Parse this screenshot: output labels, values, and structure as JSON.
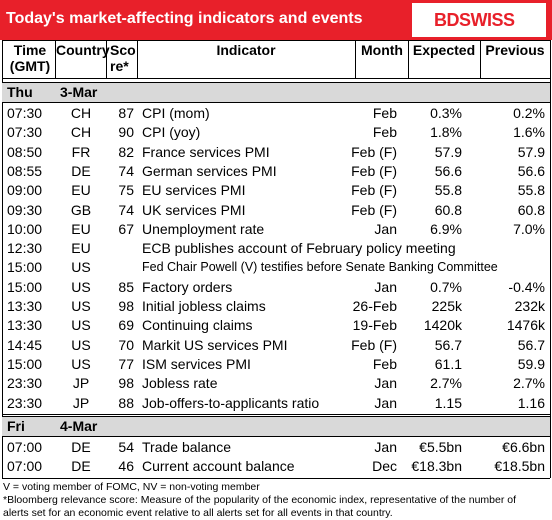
{
  "header": {
    "title": "Today's market-affecting indicators and events",
    "logo": "BDSWISS"
  },
  "columns": [
    "Time (GMT)",
    "Country",
    "Sco re*",
    "Indicator",
    "Month",
    "Expected",
    "Previous"
  ],
  "sections": [
    {
      "day": "Thu",
      "date": "3-Mar",
      "rows": [
        {
          "time": "07:30",
          "country": "CH",
          "score": 87,
          "indicator": "CPI (mom)",
          "month": "Feb",
          "expected": "0.3%",
          "previous": "0.2%"
        },
        {
          "time": "07:30",
          "country": "CH",
          "score": 90,
          "indicator": "CPI (yoy)",
          "month": "Feb",
          "expected": "1.8%",
          "previous": "1.6%"
        },
        {
          "time": "08:50",
          "country": "FR",
          "score": 82,
          "indicator": "France services PMI",
          "month": "Feb (F)",
          "expected": "57.9",
          "previous": "57.9"
        },
        {
          "time": "08:55",
          "country": "DE",
          "score": 74,
          "indicator": "German services PMI",
          "month": "Feb (F)",
          "expected": "56.6",
          "previous": "56.6"
        },
        {
          "time": "09:00",
          "country": "EU",
          "score": 75,
          "indicator": "EU services PMI",
          "month": "Feb (F)",
          "expected": "55.8",
          "previous": "55.8"
        },
        {
          "time": "09:30",
          "country": "GB",
          "score": 74,
          "indicator": "UK services PMI",
          "month": "Feb (F)",
          "expected": "60.8",
          "previous": "60.8"
        },
        {
          "time": "10:00",
          "country": "EU",
          "score": 67,
          "indicator": "Unemployment rate",
          "month": "Jan",
          "expected": "6.9%",
          "previous": "7.0%"
        },
        {
          "time": "12:30",
          "country": "EU",
          "indicator": "ECB publishes account of February policy meeting"
        },
        {
          "time": "15:00",
          "country": "US",
          "indicator": "Fed Chair Powell (V) testifies before Senate Banking Committee"
        },
        {
          "time": "15:00",
          "country": "US",
          "score": 85,
          "indicator": "Factory orders",
          "month": "Jan",
          "expected": "0.7%",
          "previous": "-0.4%"
        },
        {
          "time": "13:30",
          "country": "US",
          "score": 98,
          "indicator": "Initial jobless claims",
          "month": "26-Feb",
          "expected": "225k",
          "previous": "232k"
        },
        {
          "time": "13:30",
          "country": "US",
          "score": 69,
          "indicator": "Continuing claims",
          "month": "19-Feb",
          "expected": "1420k",
          "previous": "1476k"
        },
        {
          "time": "14:45",
          "country": "US",
          "score": 70,
          "indicator": "Markit US services PMI",
          "month": "Feb (F)",
          "expected": "56.7",
          "previous": "56.7"
        },
        {
          "time": "15:00",
          "country": "US",
          "score": 77,
          "indicator": "ISM services PMI",
          "month": "Feb",
          "expected": "61.1",
          "previous": "59.9"
        },
        {
          "time": "23:30",
          "country": "JP",
          "score": 98,
          "indicator": "Jobless rate",
          "month": "Jan",
          "expected": "2.7%",
          "previous": "2.7%"
        },
        {
          "time": "23:30",
          "country": "JP",
          "score": 88,
          "indicator": "Job-offers-to-applicants ratio",
          "month": "Jan",
          "expected": "1.15",
          "previous": "1.16"
        }
      ]
    },
    {
      "day": "Fri",
      "date": "4-Mar",
      "rows": [
        {
          "time": "07:00",
          "country": "DE",
          "score": 54,
          "indicator": "Trade balance",
          "month": "Jan",
          "expected": "€5.5bn",
          "previous": "€6.6bn"
        },
        {
          "time": "07:00",
          "country": "DE",
          "score": 46,
          "indicator": "Current account balance",
          "month": "Dec",
          "expected": "€18.3bn",
          "previous": "€18.5bn"
        }
      ]
    }
  ],
  "footnotes": [
    "V = voting member of FOMC, NV = non-voting member",
    "*Bloomberg relevance score:  Measure of the popularity of the economic index, representative of the number of",
    "alerts set for an economic event relative to all alerts set for all events in that country."
  ]
}
